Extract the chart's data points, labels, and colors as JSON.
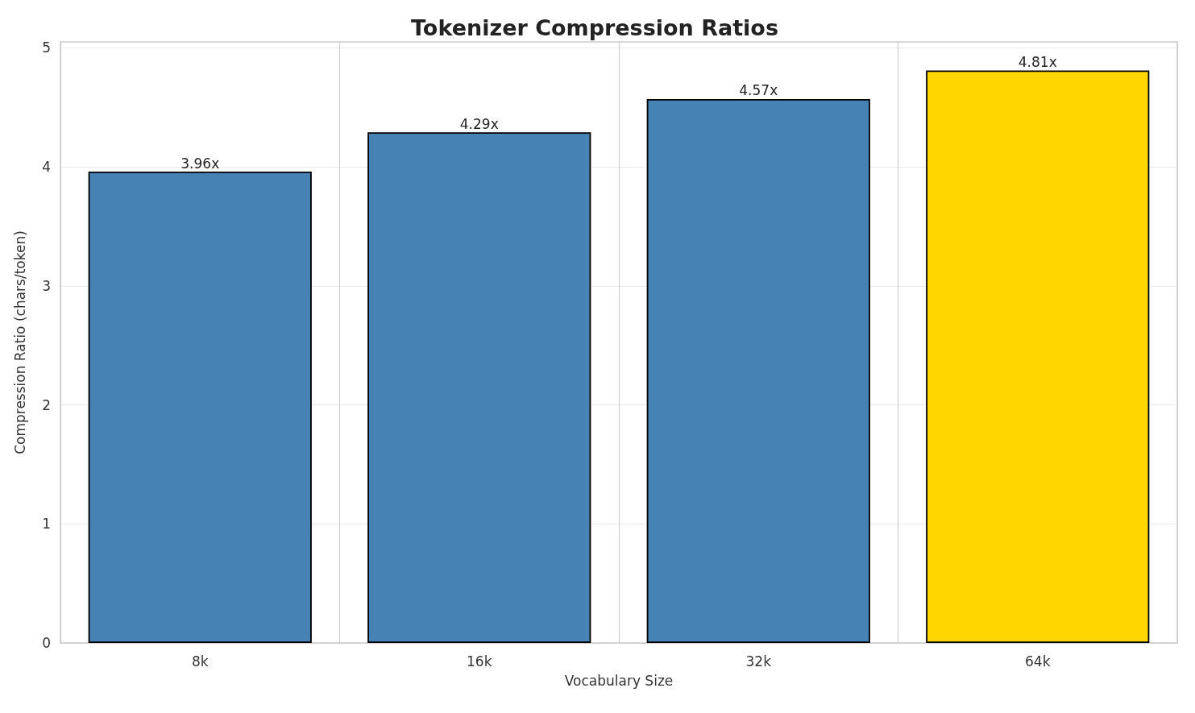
{
  "chart_data": {
    "type": "bar",
    "title": "Tokenizer Compression Ratios",
    "xlabel": "Vocabulary Size",
    "ylabel": "Compression Ratio (chars/token)",
    "categories": [
      "8k",
      "16k",
      "32k",
      "64k"
    ],
    "values": [
      3.96,
      4.29,
      4.57,
      4.81
    ],
    "colors": [
      "#4682b4",
      "#4682b4",
      "#4682b4",
      "#ffd700"
    ],
    "value_labels": [
      "3.96x",
      "4.29x",
      "4.57x",
      "4.81x"
    ],
    "ylim": [
      0,
      5.05
    ],
    "yticks": [
      0,
      1,
      2,
      3,
      4,
      5
    ],
    "grid": true
  }
}
